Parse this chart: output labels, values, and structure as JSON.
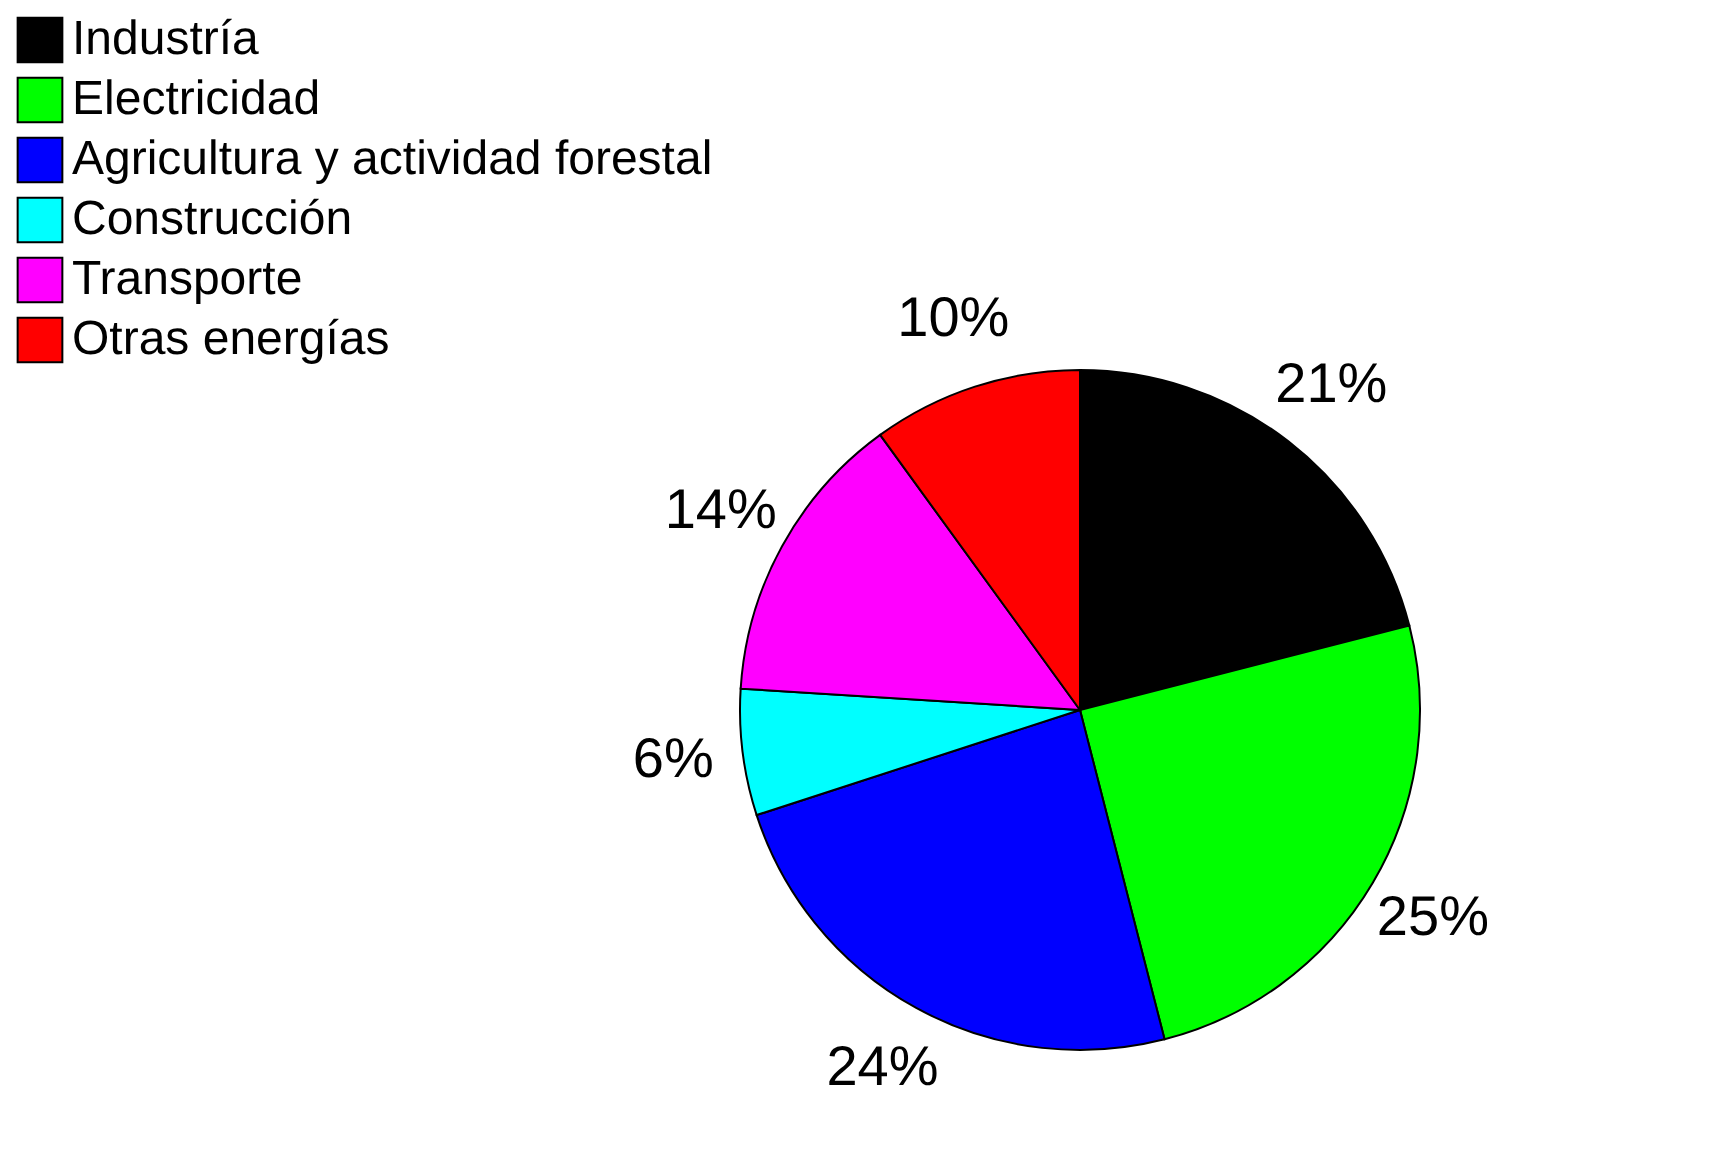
{
  "chart_data": {
    "type": "pie",
    "categories": [
      "Industría",
      "Electricidad",
      "Agricultura y actividad forestal",
      "Construcción",
      "Transporte",
      "Otras energías"
    ],
    "values": [
      21,
      25,
      24,
      6,
      14,
      10
    ],
    "value_labels": [
      "21%",
      "25%",
      "24%",
      "6%",
      "14%",
      "10%"
    ],
    "colors": [
      "#000000",
      "#00ff00",
      "#0000ff",
      "#00ffff",
      "#ff00ff",
      "#ff0000"
    ],
    "legend": "top left"
  }
}
